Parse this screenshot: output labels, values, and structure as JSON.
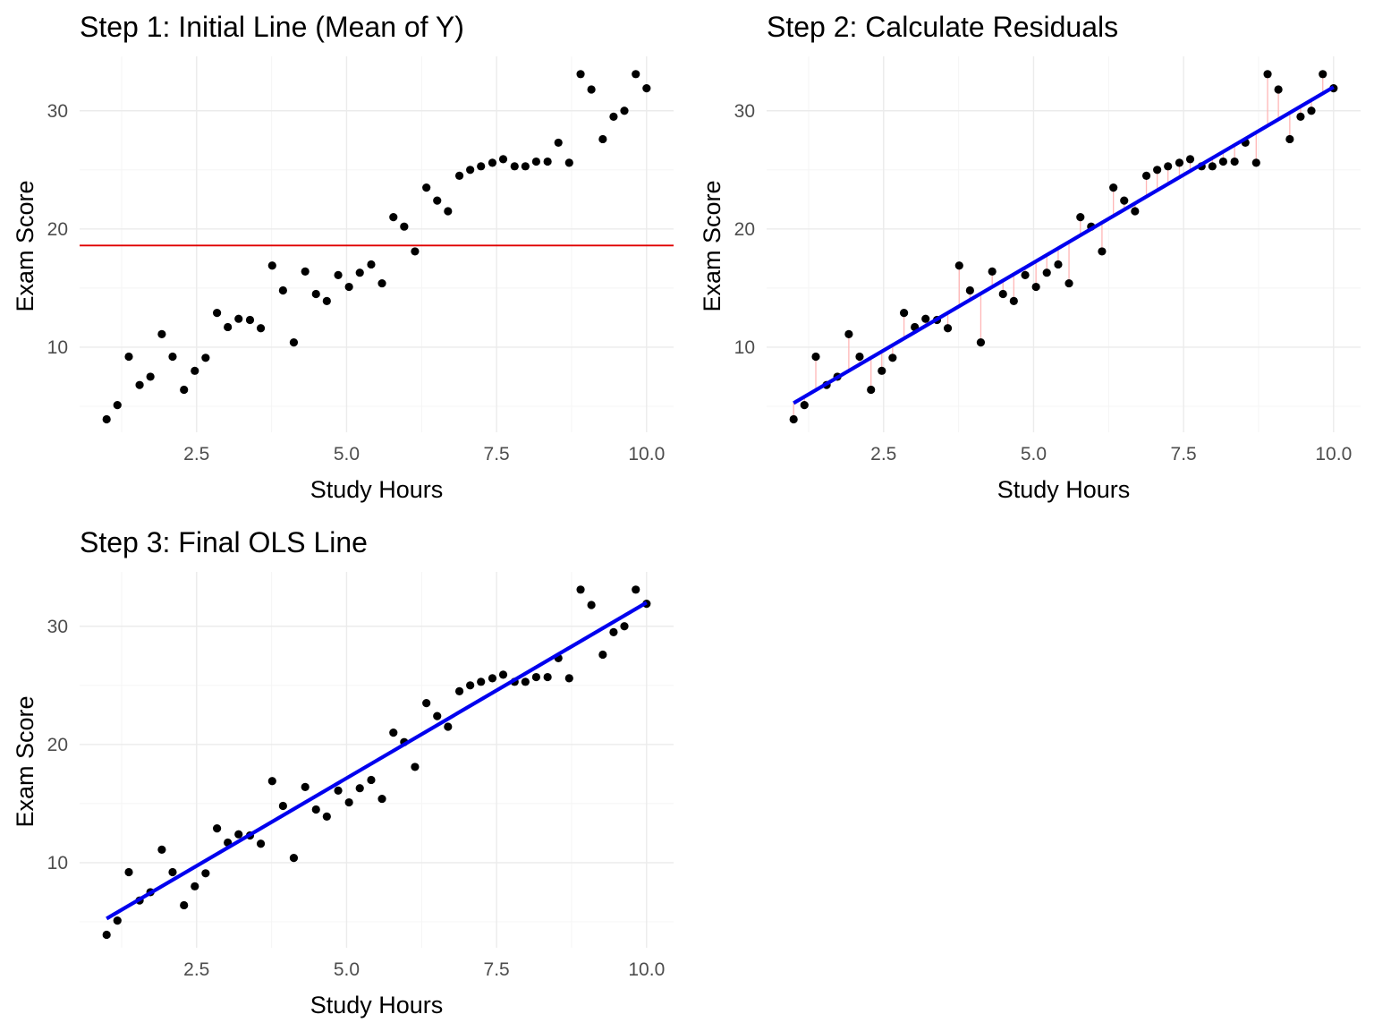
{
  "chart_data": [
    {
      "type": "scatter",
      "title": "Step 1: Initial Line (Mean of Y)",
      "xlabel": "Study Hours",
      "ylabel": "Exam Score",
      "xlim": [
        0.55,
        10.45
      ],
      "ylim": [
        2.8,
        34.6
      ],
      "xticks": [
        2.5,
        5.0,
        7.5,
        10.0
      ],
      "xtick_labels": [
        "2.5",
        "5.0",
        "7.5",
        "10.0"
      ],
      "yticks": [
        10,
        20,
        30
      ],
      "ytick_labels": [
        "10",
        "20",
        "30"
      ],
      "grid": true,
      "points": {
        "color": "#000000"
      },
      "hline": {
        "y": 18.6,
        "color": "#e00000",
        "label": "mean of Y"
      }
    },
    {
      "type": "scatter",
      "title": "Step 2: Calculate Residuals",
      "xlabel": "Study Hours",
      "ylabel": "Exam Score",
      "xlim": [
        0.55,
        10.45
      ],
      "ylim": [
        2.8,
        34.6
      ],
      "xticks": [
        2.5,
        5.0,
        7.5,
        10.0
      ],
      "xtick_labels": [
        "2.5",
        "5.0",
        "7.5",
        "10.0"
      ],
      "yticks": [
        10,
        20,
        30
      ],
      "ytick_labels": [
        "10",
        "20",
        "30"
      ],
      "grid": true,
      "points": {
        "color": "#000000"
      },
      "fit_line": {
        "intercept": 2.3,
        "slope": 2.97,
        "color": "#0000ee"
      },
      "residuals": {
        "color": "#ffb6b6"
      }
    },
    {
      "type": "scatter",
      "title": "Step 3: Final OLS Line",
      "xlabel": "Study Hours",
      "ylabel": "Exam Score",
      "xlim": [
        0.55,
        10.45
      ],
      "ylim": [
        2.8,
        34.6
      ],
      "xticks": [
        2.5,
        5.0,
        7.5,
        10.0
      ],
      "xtick_labels": [
        "2.5",
        "5.0",
        "7.5",
        "10.0"
      ],
      "yticks": [
        10,
        20,
        30
      ],
      "ytick_labels": [
        "10",
        "20",
        "30"
      ],
      "grid": true,
      "points": {
        "color": "#000000"
      },
      "fit_line": {
        "intercept": 2.3,
        "slope": 2.97,
        "color": "#0000ee"
      }
    }
  ],
  "data_points": {
    "x": [
      1.0,
      1.18,
      1.37,
      1.55,
      1.73,
      1.92,
      2.1,
      2.29,
      2.47,
      2.65,
      2.84,
      3.02,
      3.2,
      3.39,
      3.57,
      3.76,
      3.94,
      4.12,
      4.31,
      4.49,
      4.67,
      4.86,
      5.04,
      5.22,
      5.41,
      5.59,
      5.78,
      5.96,
      6.14,
      6.33,
      6.51,
      6.69,
      6.88,
      7.06,
      7.24,
      7.43,
      7.61,
      7.8,
      7.98,
      8.16,
      8.35,
      8.53,
      8.71,
      8.9,
      9.08,
      9.27,
      9.45,
      9.63,
      9.82,
      10.0
    ],
    "y": [
      3.9,
      5.1,
      9.2,
      6.8,
      7.5,
      11.1,
      9.2,
      6.4,
      8.0,
      9.1,
      12.9,
      11.7,
      12.4,
      12.3,
      11.6,
      16.9,
      14.8,
      10.4,
      16.4,
      14.5,
      13.9,
      16.1,
      15.1,
      16.3,
      17.0,
      15.4,
      21.0,
      20.2,
      18.1,
      23.5,
      22.4,
      21.5,
      24.5,
      25.0,
      25.3,
      25.6,
      25.9,
      25.3,
      25.3,
      25.7,
      25.7,
      27.3,
      25.6,
      33.1,
      31.8,
      27.6,
      29.5,
      30.0,
      33.1,
      31.9
    ]
  }
}
